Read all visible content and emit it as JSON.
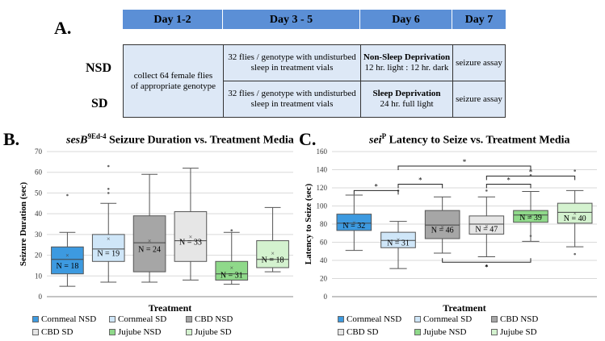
{
  "panel_a": {
    "label": "A.",
    "headers": [
      "Day 1-2",
      "Day 3 - 5",
      "Day 6",
      "Day 7"
    ],
    "row_labels": [
      "NSD",
      "SD"
    ],
    "collect_text": "collect 64 female flies of appropriate genotype",
    "nsd": {
      "day35": "32 flies / genotype with undisturbed sleep in treatment vials",
      "day6_title": "Non-Sleep Deprivation",
      "day6_detail": "12 hr. light : 12 hr. dark",
      "day7": "seizure assay"
    },
    "sd": {
      "day35": "32 flies / genotype with undisturbed sleep in treatment vials",
      "day6_title": "Sleep Deprivation",
      "day6_detail": "24 hr. full light",
      "day7": "seizure assay"
    }
  },
  "panel_b": {
    "label": "B.",
    "title_italic": "sesB",
    "title_sup": "9Ed-4",
    "title_rest": " Seizure Duration vs. Treatment Media"
  },
  "panel_c": {
    "label": "C.",
    "title_italic": "sei",
    "title_sup": "P",
    "title_rest": " Latency to Seize vs. Treatment Media"
  },
  "legend": [
    "Cornmeal NSD",
    "Cornmeal SD",
    "CBD NSD",
    "CBD SD",
    "Jujube NSD",
    "Jujube SD"
  ],
  "colors": [
    "#3d9ae0",
    "#cfe6f8",
    "#a6a6a6",
    "#e6e6e6",
    "#8fd98a",
    "#d4f2cf"
  ],
  "chart_data": [
    {
      "type": "box",
      "xlabel": "Treatment",
      "ylabel": "Seizure Duration (sec)",
      "ylim": [
        0,
        70
      ],
      "yticks": [
        0,
        10,
        20,
        30,
        40,
        50,
        60,
        70
      ],
      "groups": [
        {
          "name": "Cornmeal NSD",
          "n_label": "N = 18",
          "min": 5,
          "q1": 11,
          "median": 18,
          "q3": 24,
          "max": 31,
          "mean": 20,
          "outliers": [
            49
          ]
        },
        {
          "name": "Cornmeal SD",
          "n_label": "N = 19",
          "min": 7,
          "q1": 17,
          "median": 23,
          "q3": 30,
          "max": 45,
          "mean": 28,
          "outliers": [
            50,
            52,
            63
          ]
        },
        {
          "name": "CBD NSD",
          "n_label": "N = 24",
          "min": 7,
          "q1": 12,
          "median": 26,
          "q3": 39,
          "max": 59,
          "mean": 27,
          "outliers": []
        },
        {
          "name": "CBD SD",
          "n_label": "N = 33",
          "min": 8,
          "q1": 17,
          "median": 27,
          "q3": 41,
          "max": 62,
          "mean": 29,
          "outliers": []
        },
        {
          "name": "Jujube NSD",
          "n_label": "N = 31",
          "min": 6,
          "q1": 8,
          "median": 11,
          "q3": 17,
          "max": 31,
          "mean": 14,
          "outliers": [
            32
          ]
        },
        {
          "name": "Jujube SD",
          "n_label": "N = 18",
          "min": 12,
          "q1": 14,
          "median": 18,
          "q3": 27,
          "max": 43,
          "mean": 21,
          "outliers": []
        }
      ]
    },
    {
      "type": "box",
      "xlabel": "Treatment",
      "ylabel": "Latency to Seize (sec)",
      "ylim": [
        0,
        160
      ],
      "yticks": [
        0,
        20,
        40,
        60,
        80,
        100,
        120,
        140,
        160
      ],
      "groups": [
        {
          "name": "Cornmeal NSD",
          "n_label": "N = 32",
          "min": 51,
          "q1": 73,
          "median": 81,
          "q3": 91,
          "max": 112,
          "mean": 82,
          "outliers": []
        },
        {
          "name": "Cornmeal SD",
          "n_label": "N = 31",
          "min": 31,
          "q1": 54,
          "median": 62,
          "q3": 71,
          "max": 83,
          "mean": 63,
          "outliers": [
            117
          ]
        },
        {
          "name": "CBD NSD",
          "n_label": "N = 46",
          "min": 48,
          "q1": 64,
          "median": 79,
          "q3": 95,
          "max": 110,
          "mean": 77,
          "outliers": []
        },
        {
          "name": "CBD SD",
          "n_label": "N = 47",
          "min": 44,
          "q1": 69,
          "median": 80,
          "q3": 89,
          "max": 110,
          "mean": 78,
          "outliers": [
            34,
            117
          ]
        },
        {
          "name": "Jujube NSD",
          "n_label": "N = 39",
          "min": 61,
          "q1": 82,
          "median": 90,
          "q3": 95,
          "max": 116,
          "mean": 89,
          "outliers": [
            67,
            134
          ]
        },
        {
          "name": "Jujube SD",
          "n_label": "N = 40",
          "min": 55,
          "q1": 81,
          "median": 93,
          "q3": 103,
          "max": 117,
          "mean": 92,
          "outliers": [
            47,
            139
          ]
        }
      ],
      "annotations": [
        "*",
        "*",
        "*",
        "*",
        "*",
        "*"
      ]
    }
  ]
}
